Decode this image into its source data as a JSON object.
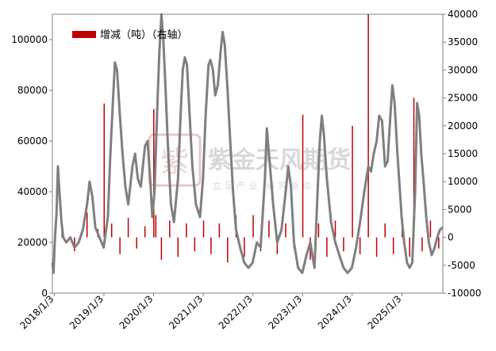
{
  "watermark": {
    "logo_char": "紫",
    "title": "紫金天风期货",
    "subtitle": "立足产业 研究驱动"
  },
  "colors": {
    "line": "#7f7f7f",
    "bar": "#c00000",
    "axis": "#808080",
    "watermark": "#d8d8d8"
  },
  "chart_data": {
    "type": "bar+line",
    "title": "",
    "legend": {
      "label": "增减（吨）（右轴）",
      "position": "top-left"
    },
    "x_axis": {
      "start": "2017/12/20",
      "end": "2025/10/31",
      "ticks": [
        "2018/1/3",
        "2019/1/3",
        "2020/1/3",
        "2021/1/3",
        "2022/1/3",
        "2023/1/3",
        "2024/1/3",
        "2025/1/3"
      ]
    },
    "y_left": {
      "min": 0,
      "max": 110000,
      "ticks": [
        "0",
        "20000",
        "40000",
        "60000",
        "80000",
        "100000"
      ]
    },
    "y_right": {
      "min": -10000,
      "max": 40000,
      "ticks": [
        "-10000",
        "-5000",
        "0",
        "5000",
        "10000",
        "15000",
        "20000",
        "25000",
        "30000",
        "35000",
        "40000"
      ]
    },
    "series": [
      {
        "axis": "left",
        "type": "line",
        "points": [
          [
            "2017/12/20",
            12000
          ],
          [
            "2017/12/28",
            8000
          ],
          [
            "2018/1/8",
            22000
          ],
          [
            "2018/1/20",
            32000
          ],
          [
            "2018/1/30",
            50000
          ],
          [
            "2018/2/10",
            40000
          ],
          [
            "2018/2/25",
            28000
          ],
          [
            "2018/3/10",
            22000
          ],
          [
            "2018/4/1",
            20000
          ],
          [
            "2018/5/1",
            22000
          ],
          [
            "2018/6/1",
            18000
          ],
          [
            "2018/7/1",
            20000
          ],
          [
            "2018/8/1",
            25000
          ],
          [
            "2018/9/1",
            35000
          ],
          [
            "2018/9/20",
            44000
          ],
          [
            "2018/10/10",
            38000
          ],
          [
            "2018/11/1",
            26000
          ],
          [
            "2018/12/1",
            22000
          ],
          [
            "2019/1/1",
            18000
          ],
          [
            "2019/2/1",
            30000
          ],
          [
            "2019/2/20",
            55000
          ],
          [
            "2019/3/10",
            75000
          ],
          [
            "2019/3/25",
            91000
          ],
          [
            "2019/4/10",
            88000
          ],
          [
            "2019/5/1",
            70000
          ],
          [
            "2019/5/20",
            55000
          ],
          [
            "2019/6/10",
            42000
          ],
          [
            "2019/7/1",
            35000
          ],
          [
            "2019/8/1",
            50000
          ],
          [
            "2019/8/20",
            55000
          ],
          [
            "2019/9/10",
            45000
          ],
          [
            "2019/10/1",
            42000
          ],
          [
            "2019/11/1",
            58000
          ],
          [
            "2019/11/20",
            60000
          ],
          [
            "2019/12/10",
            45000
          ],
          [
            "2019/12/25",
            30000
          ],
          [
            "2020/1/10",
            40000
          ],
          [
            "2020/2/1",
            75000
          ],
          [
            "2020/2/15",
            95000
          ],
          [
            "2020/3/1",
            110000
          ],
          [
            "2020/3/15",
            100000
          ],
          [
            "2020/4/1",
            80000
          ],
          [
            "2020/4/20",
            55000
          ],
          [
            "2020/5/10",
            35000
          ],
          [
            "2020/6/1",
            28000
          ],
          [
            "2020/7/1",
            45000
          ],
          [
            "2020/7/20",
            70000
          ],
          [
            "2020/8/5",
            88000
          ],
          [
            "2020/8/20",
            93000
          ],
          [
            "2020/9/5",
            90000
          ],
          [
            "2020/9/25",
            70000
          ],
          [
            "2020/10/15",
            50000
          ],
          [
            "2020/11/10",
            35000
          ],
          [
            "2020/12/10",
            30000
          ],
          [
            "2021/1/1",
            45000
          ],
          [
            "2021/1/20",
            70000
          ],
          [
            "2021/2/10",
            90000
          ],
          [
            "2021/2/25",
            92000
          ],
          [
            "2021/3/15",
            88000
          ],
          [
            "2021/4/1",
            78000
          ],
          [
            "2021/4/20",
            82000
          ],
          [
            "2021/5/10",
            95000
          ],
          [
            "2021/5/25",
            103000
          ],
          [
            "2021/6/10",
            98000
          ],
          [
            "2021/7/1",
            80000
          ],
          [
            "2021/7/20",
            60000
          ],
          [
            "2021/8/10",
            40000
          ],
          [
            "2021/9/1",
            25000
          ],
          [
            "2021/10/1",
            18000
          ],
          [
            "2021/11/1",
            12000
          ],
          [
            "2021/12/1",
            10000
          ],
          [
            "2022/1/1",
            12000
          ],
          [
            "2022/2/1",
            20000
          ],
          [
            "2022/3/1",
            18000
          ],
          [
            "2022/4/1",
            45000
          ],
          [
            "2022/4/15",
            65000
          ],
          [
            "2022/5/1",
            55000
          ],
          [
            "2022/6/1",
            35000
          ],
          [
            "2022/7/1",
            20000
          ],
          [
            "2022/8/1",
            25000
          ],
          [
            "2022/9/1",
            40000
          ],
          [
            "2022/9/20",
            50000
          ],
          [
            "2022/10/10",
            42000
          ],
          [
            "2022/11/1",
            20000
          ],
          [
            "2022/12/1",
            10000
          ],
          [
            "2023/1/1",
            8000
          ],
          [
            "2023/2/1",
            15000
          ],
          [
            "2023/3/1",
            20000
          ],
          [
            "2023/4/1",
            10000
          ],
          [
            "2023/4/20",
            35000
          ],
          [
            "2023/5/10",
            60000
          ],
          [
            "2023/5/25",
            70000
          ],
          [
            "2023/6/10",
            62000
          ],
          [
            "2023/7/1",
            45000
          ],
          [
            "2023/8/1",
            28000
          ],
          [
            "2023/9/1",
            20000
          ],
          [
            "2023/10/1",
            15000
          ],
          [
            "2023/11/1",
            10000
          ],
          [
            "2023/12/1",
            8000
          ],
          [
            "2024/1/1",
            10000
          ],
          [
            "2024/2/1",
            18000
          ],
          [
            "2024/3/1",
            28000
          ],
          [
            "2024/4/1",
            40000
          ],
          [
            "2024/5/1",
            50000
          ],
          [
            "2024/5/20",
            48000
          ],
          [
            "2024/6/10",
            55000
          ],
          [
            "2024/7/1",
            60000
          ],
          [
            "2024/7/20",
            70000
          ],
          [
            "2024/8/10",
            68000
          ],
          [
            "2024/9/1",
            50000
          ],
          [
            "2024/9/20",
            52000
          ],
          [
            "2024/10/10",
            70000
          ],
          [
            "2024/10/25",
            82000
          ],
          [
            "2024/11/10",
            75000
          ],
          [
            "2024/12/1",
            55000
          ],
          [
            "2025/1/1",
            30000
          ],
          [
            "2025/1/20",
            20000
          ],
          [
            "2025/2/10",
            12000
          ],
          [
            "2025/3/1",
            10000
          ],
          [
            "2025/3/20",
            12000
          ],
          [
            "2025/4/10",
            40000
          ],
          [
            "2025/4/25",
            75000
          ],
          [
            "2025/5/10",
            70000
          ],
          [
            "2025/5/25",
            55000
          ],
          [
            "2025/6/10",
            45000
          ],
          [
            "2025/7/1",
            30000
          ],
          [
            "2025/7/20",
            20000
          ],
          [
            "2025/8/10",
            15000
          ],
          [
            "2025/9/1",
            18000
          ],
          [
            "2025/9/20",
            22000
          ],
          [
            "2025/10/10",
            25000
          ],
          [
            "2025/10/31",
            26000
          ]
        ]
      },
      {
        "name": "增减（吨）（右轴）",
        "axis": "right",
        "type": "bar",
        "points": [
          [
            "2018/3/1",
            1500
          ],
          [
            "2018/6/1",
            -2500
          ],
          [
            "2018/9/1",
            4500
          ],
          [
            "2018/11/20",
            1500
          ],
          [
            "2019/1/5",
            24000
          ],
          [
            "2019/3/1",
            2500
          ],
          [
            "2019/5/1",
            -3000
          ],
          [
            "2019/7/1",
            3500
          ],
          [
            "2019/9/1",
            -2000
          ],
          [
            "2019/11/1",
            2000
          ],
          [
            "2020/1/5",
            23000
          ],
          [
            "2020/1/20",
            4000
          ],
          [
            "2020/3/1",
            -4000
          ],
          [
            "2020/5/1",
            3000
          ],
          [
            "2020/7/1",
            -3500
          ],
          [
            "2020/9/1",
            2500
          ],
          [
            "2020/11/1",
            -2500
          ],
          [
            "2021/1/5",
            3000
          ],
          [
            "2021/3/1",
            -3000
          ],
          [
            "2021/5/1",
            2500
          ],
          [
            "2021/7/1",
            -4500
          ],
          [
            "2021/9/1",
            4000
          ],
          [
            "2021/11/1",
            -3500
          ],
          [
            "2022/1/5",
            4000
          ],
          [
            "2022/3/1",
            -2500
          ],
          [
            "2022/5/1",
            3000
          ],
          [
            "2022/7/1",
            -3000
          ],
          [
            "2022/9/1",
            2500
          ],
          [
            "2022/11/1",
            -2000
          ],
          [
            "2023/1/5",
            22000
          ],
          [
            "2023/3/1",
            -4000
          ],
          [
            "2023/5/1",
            2500
          ],
          [
            "2023/7/1",
            -3500
          ],
          [
            "2023/9/1",
            3000
          ],
          [
            "2023/11/1",
            -2500
          ],
          [
            "2024/1/5",
            20000
          ],
          [
            "2024/3/1",
            -3000
          ],
          [
            "2024/5/1",
            40000
          ],
          [
            "2024/7/1",
            -3500
          ],
          [
            "2024/9/1",
            2500
          ],
          [
            "2024/11/1",
            -3000
          ],
          [
            "2025/1/5",
            3500
          ],
          [
            "2025/3/1",
            -3500
          ],
          [
            "2025/4/1",
            25000
          ],
          [
            "2025/6/1",
            -2500
          ],
          [
            "2025/8/1",
            3000
          ],
          [
            "2025/10/1",
            -2000
          ]
        ]
      }
    ]
  }
}
